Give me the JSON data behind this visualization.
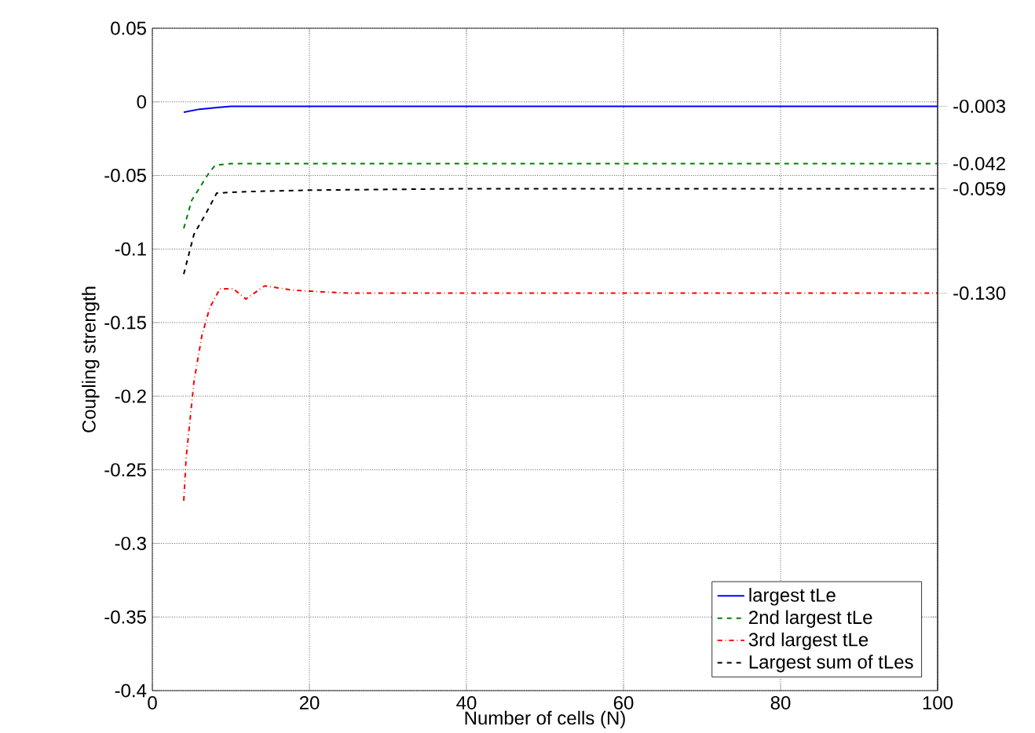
{
  "chart_data": {
    "type": "line",
    "xlabel": "Number of cells (N)",
    "ylabel": "Coupling strength",
    "xlim": [
      0,
      100
    ],
    "ylim": [
      -0.4,
      0.05
    ],
    "xticks": [
      0,
      20,
      40,
      60,
      80,
      100
    ],
    "yticks": [
      -0.4,
      -0.35,
      -0.3,
      -0.25,
      -0.2,
      -0.15,
      -0.1,
      -0.05,
      0,
      0.05
    ],
    "grid": true,
    "legend": "bottom right",
    "series": [
      {
        "name": "largest tLe",
        "color": "#0000ff",
        "line_style": "solid",
        "x": [
          4,
          6,
          8,
          10,
          20,
          40,
          60,
          80,
          100
        ],
        "values": [
          -0.007,
          -0.005,
          -0.004,
          -0.003,
          -0.003,
          -0.003,
          -0.003,
          -0.003,
          -0.003
        ]
      },
      {
        "name": "2nd largest tLe",
        "color": "#008000",
        "line_style": "dashed",
        "x": [
          4,
          5,
          7,
          8,
          10,
          20,
          40,
          60,
          80,
          100
        ],
        "values": [
          -0.086,
          -0.067,
          -0.05,
          -0.043,
          -0.042,
          -0.042,
          -0.042,
          -0.042,
          -0.042,
          -0.042
        ]
      },
      {
        "name": "3rd largest tLe",
        "color": "#ff0000",
        "line_style": "dashdot",
        "x": [
          4,
          4.3,
          5.3,
          6.3,
          7.3,
          8.6,
          10.3,
          11.9,
          14.3,
          18,
          25,
          40,
          60,
          80,
          100
        ],
        "values": [
          -0.271,
          -0.242,
          -0.19,
          -0.159,
          -0.14,
          -0.127,
          -0.127,
          -0.134,
          -0.125,
          -0.128,
          -0.13,
          -0.13,
          -0.13,
          -0.13,
          -0.13
        ]
      },
      {
        "name": "Largest sum of tLes",
        "color": "#000000",
        "line_style": "dashed",
        "x": [
          4,
          5.3,
          6.9,
          8.2,
          12,
          20,
          40,
          60,
          80,
          100
        ],
        "values": [
          -0.117,
          -0.09,
          -0.075,
          -0.062,
          -0.061,
          -0.06,
          -0.059,
          -0.059,
          -0.059,
          -0.059
        ]
      }
    ],
    "y2lim": [
      -0.4,
      0.05
    ],
    "y2ticks": [
      {
        "value": -0.003,
        "label": "-0.003"
      },
      {
        "value": -0.042,
        "label": "-0.042"
      },
      {
        "value": -0.059,
        "label": "-0.059"
      },
      {
        "value": -0.13,
        "label": "-0.130"
      }
    ]
  }
}
